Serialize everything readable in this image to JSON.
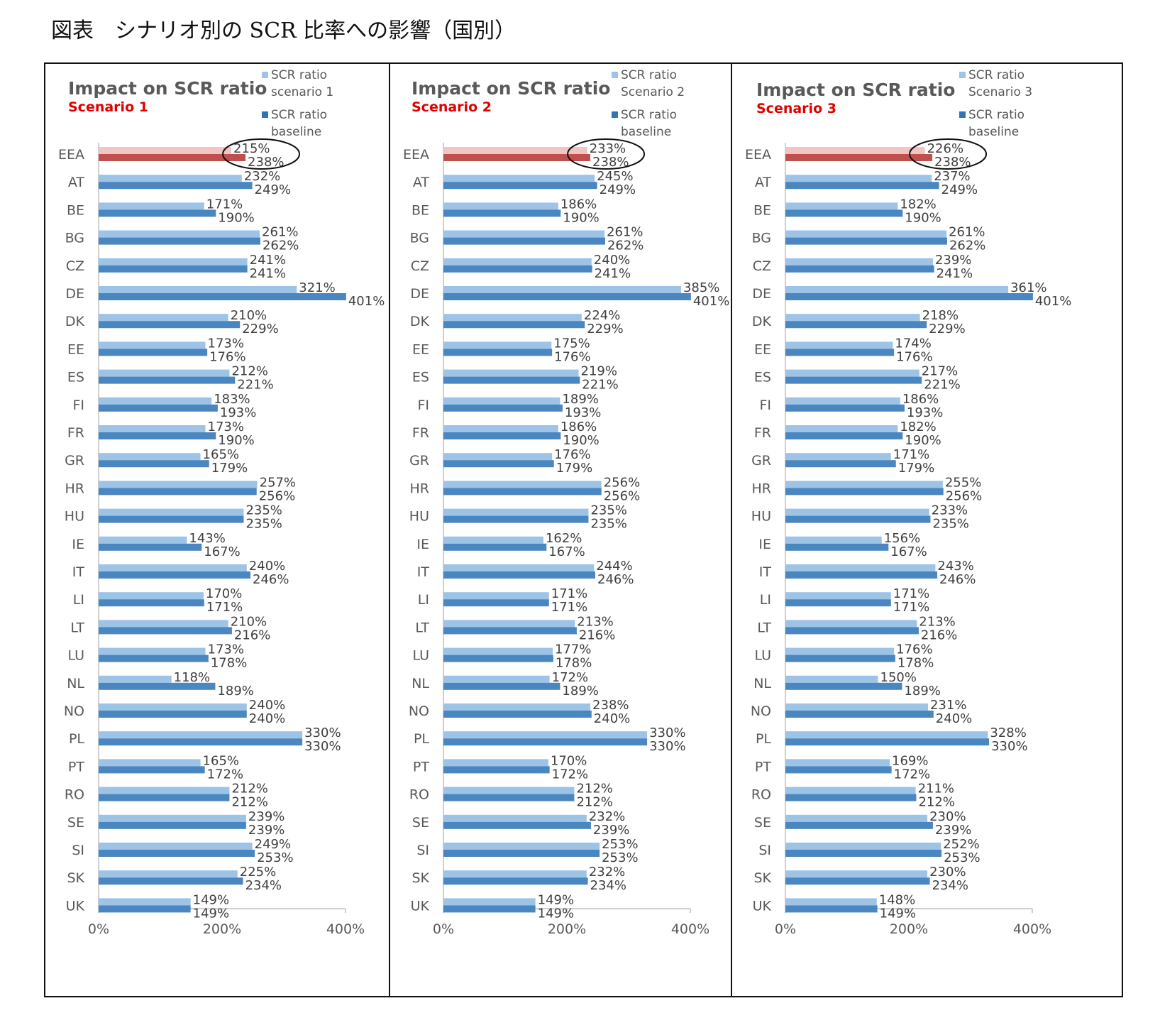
{
  "page": {
    "title": "図表　シナリオ別の SCR 比率への影響（国別）"
  },
  "colors": {
    "scenario_bar": "#9dc3e6",
    "baseline_bar": "#4a86c0",
    "eea_scenario_bar": "#f2c4c4",
    "eea_baseline_bar": "#c0504d",
    "axis": "#bfbfbf",
    "label_text": "#404040"
  },
  "panels": [
    {
      "title": "Impact on SCR ratio",
      "subtitle": "Scenario 1",
      "legend": {
        "scenario": "SCR ratio scenario 1",
        "baseline": "SCR ratio baseline"
      }
    },
    {
      "title": "Impact on SCR ratio",
      "subtitle": "Scenario 2",
      "legend": {
        "scenario": "SCR ratio Scenario 2",
        "baseline": "SCR ratio baseline"
      }
    },
    {
      "title": "Impact on SCR ratio",
      "subtitle": "Scenario 3",
      "legend": {
        "scenario": "SCR ratio Scenario 3",
        "baseline": "SCR ratio baseline"
      }
    }
  ],
  "chart_data": [
    {
      "type": "bar",
      "orientation": "horizontal",
      "title": "Impact on SCR ratio",
      "subtitle": "Scenario 1",
      "categories": [
        "EEA",
        "AT",
        "BE",
        "BG",
        "CZ",
        "DE",
        "DK",
        "EE",
        "ES",
        "FI",
        "FR",
        "GR",
        "HR",
        "HU",
        "IE",
        "IT",
        "LI",
        "LT",
        "LU",
        "NL",
        "NO",
        "PL",
        "PT",
        "RO",
        "SE",
        "SI",
        "SK",
        "UK"
      ],
      "series": [
        {
          "name": "SCR ratio scenario 1",
          "values": [
            215,
            232,
            171,
            261,
            241,
            321,
            210,
            173,
            212,
            183,
            173,
            165,
            257,
            235,
            143,
            240,
            170,
            210,
            173,
            118,
            240,
            330,
            165,
            212,
            239,
            249,
            225,
            149
          ]
        },
        {
          "name": "SCR ratio baseline",
          "values": [
            238,
            249,
            190,
            262,
            241,
            401,
            229,
            176,
            221,
            193,
            190,
            179,
            256,
            235,
            167,
            246,
            171,
            216,
            178,
            189,
            240,
            330,
            172,
            212,
            239,
            253,
            234,
            149
          ]
        }
      ],
      "highlight_category": "EEA",
      "xlim": [
        0,
        400
      ],
      "xticks": [
        "0%",
        "200%",
        "400%"
      ],
      "legend_position": "top-right"
    },
    {
      "type": "bar",
      "orientation": "horizontal",
      "title": "Impact on SCR ratio",
      "subtitle": "Scenario 2",
      "categories": [
        "EEA",
        "AT",
        "BE",
        "BG",
        "CZ",
        "DE",
        "DK",
        "EE",
        "ES",
        "FI",
        "FR",
        "GR",
        "HR",
        "HU",
        "IE",
        "IT",
        "LI",
        "LT",
        "LU",
        "NL",
        "NO",
        "PL",
        "PT",
        "RO",
        "SE",
        "SI",
        "SK",
        "UK"
      ],
      "series": [
        {
          "name": "SCR ratio Scenario 2",
          "values": [
            233,
            245,
            186,
            261,
            240,
            385,
            224,
            175,
            219,
            189,
            186,
            176,
            256,
            235,
            162,
            244,
            171,
            213,
            177,
            172,
            238,
            330,
            170,
            212,
            232,
            253,
            232,
            149
          ]
        },
        {
          "name": "SCR ratio baseline",
          "values": [
            238,
            249,
            190,
            262,
            241,
            401,
            229,
            176,
            221,
            193,
            190,
            179,
            256,
            235,
            167,
            246,
            171,
            216,
            178,
            189,
            240,
            330,
            172,
            212,
            239,
            253,
            234,
            149
          ]
        }
      ],
      "highlight_category": "EEA",
      "xlim": [
        0,
        400
      ],
      "xticks": [
        "0%",
        "200%",
        "400%"
      ],
      "legend_position": "top-right"
    },
    {
      "type": "bar",
      "orientation": "horizontal",
      "title": "Impact on SCR ratio",
      "subtitle": "Scenario 3",
      "categories": [
        "EEA",
        "AT",
        "BE",
        "BG",
        "CZ",
        "DE",
        "DK",
        "EE",
        "ES",
        "FI",
        "FR",
        "GR",
        "HR",
        "HU",
        "IE",
        "IT",
        "LI",
        "LT",
        "LU",
        "NL",
        "NO",
        "PL",
        "PT",
        "RO",
        "SE",
        "SI",
        "SK",
        "UK"
      ],
      "series": [
        {
          "name": "SCR ratio Scenario 3",
          "values": [
            226,
            237,
            182,
            261,
            239,
            361,
            218,
            174,
            217,
            186,
            182,
            171,
            255,
            233,
            156,
            243,
            171,
            213,
            176,
            150,
            231,
            328,
            169,
            211,
            230,
            252,
            230,
            148
          ]
        },
        {
          "name": "SCR ratio baseline",
          "values": [
            238,
            249,
            190,
            262,
            241,
            401,
            229,
            176,
            221,
            193,
            190,
            179,
            256,
            235,
            167,
            246,
            171,
            216,
            178,
            189,
            240,
            330,
            172,
            212,
            239,
            253,
            234,
            149
          ]
        }
      ],
      "highlight_category": "EEA",
      "xlim": [
        0,
        400
      ],
      "xticks": [
        "0%",
        "200%",
        "400%"
      ],
      "legend_position": "top-right"
    }
  ]
}
